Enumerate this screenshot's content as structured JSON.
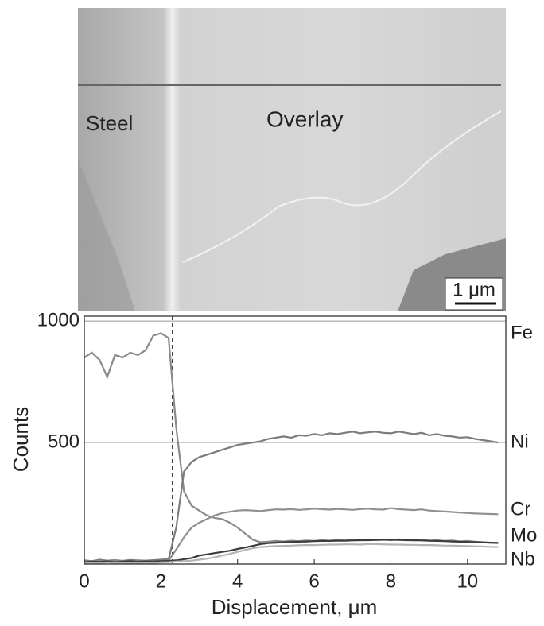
{
  "micrograph": {
    "labels": [
      "Steel",
      "Overlay"
    ],
    "scale_bar": "1 μm"
  },
  "chart_data": {
    "type": "line",
    "xlabel": "Displacement, μm",
    "ylabel": "Counts",
    "x": [
      0,
      0.2,
      0.4,
      0.6,
      0.8,
      1,
      1.2,
      1.4,
      1.6,
      1.8,
      2,
      2.2,
      2.4,
      2.6,
      2.8,
      3,
      3.2,
      3.4,
      3.6,
      3.8,
      4,
      4.2,
      4.4,
      4.6,
      4.8,
      5,
      5.2,
      5.4,
      5.6,
      5.8,
      6,
      6.2,
      6.4,
      6.6,
      6.8,
      7,
      7.2,
      7.4,
      7.6,
      7.8,
      8,
      8.2,
      8.4,
      8.6,
      8.8,
      9,
      9.2,
      9.4,
      9.6,
      9.8,
      10,
      10.2,
      10.4,
      10.6,
      10.8
    ],
    "series": [
      {
        "name": "Fe",
        "color": "#8a8a8a",
        "values": [
          850,
          870,
          840,
          770,
          860,
          850,
          870,
          860,
          880,
          940,
          950,
          930,
          560,
          300,
          240,
          220,
          200,
          190,
          185,
          170,
          150,
          125,
          100,
          90,
          92,
          95,
          93,
          96,
          94,
          97,
          95,
          98,
          96,
          99,
          97,
          100,
          98,
          101,
          99,
          100,
          98,
          102,
          99,
          97,
          100,
          96,
          98,
          95,
          97,
          93,
          95,
          92,
          90,
          88,
          86
        ]
      },
      {
        "name": "Ni",
        "color": "#7c7c7c",
        "values": [
          15,
          12,
          18,
          14,
          16,
          13,
          17,
          15,
          14,
          16,
          18,
          20,
          150,
          380,
          420,
          440,
          450,
          460,
          470,
          480,
          490,
          495,
          500,
          505,
          515,
          520,
          525,
          520,
          530,
          528,
          535,
          530,
          538,
          535,
          540,
          545,
          538,
          542,
          545,
          540,
          538,
          545,
          540,
          535,
          540,
          530,
          535,
          528,
          525,
          520,
          522,
          515,
          510,
          505,
          500
        ]
      },
      {
        "name": "Cr",
        "color": "#909090",
        "values": [
          10,
          8,
          12,
          9,
          11,
          10,
          12,
          9,
          10,
          11,
          12,
          14,
          60,
          110,
          150,
          170,
          185,
          200,
          210,
          215,
          220,
          222,
          220,
          218,
          222,
          225,
          224,
          226,
          223,
          225,
          228,
          226,
          224,
          227,
          225,
          223,
          226,
          228,
          225,
          224,
          230,
          226,
          224,
          222,
          225,
          220,
          218,
          216,
          214,
          212,
          210,
          208,
          207,
          206,
          205
        ]
      },
      {
        "name": "Mo",
        "color": "#3c3c3c",
        "values": [
          8,
          10,
          9,
          11,
          8,
          10,
          12,
          9,
          11,
          10,
          12,
          13,
          15,
          20,
          25,
          35,
          40,
          45,
          50,
          55,
          62,
          68,
          75,
          82,
          86,
          88,
          90,
          91,
          92,
          93,
          94,
          95,
          95,
          96,
          96,
          97,
          98,
          98,
          99,
          100,
          100,
          99,
          98,
          98,
          97,
          96,
          95,
          94,
          93,
          92,
          91,
          90,
          89,
          88,
          87
        ]
      },
      {
        "name": "Nb",
        "color": "#b4b4b4",
        "values": [
          5,
          6,
          4,
          7,
          5,
          6,
          5,
          4,
          6,
          5,
          7,
          8,
          10,
          12,
          14,
          18,
          22,
          28,
          35,
          42,
          50,
          58,
          65,
          70,
          72,
          74,
          75,
          76,
          77,
          78,
          78,
          79,
          80,
          80,
          81,
          81,
          80,
          82,
          82,
          81,
          80,
          80,
          79,
          79,
          78,
          78,
          77,
          76,
          76,
          75,
          74,
          73,
          72,
          71,
          70
        ]
      }
    ],
    "xlim": [
      0,
      11
    ],
    "ylim": [
      0,
      1020
    ],
    "xticks": [
      0,
      2,
      4,
      6,
      8,
      10
    ],
    "yticks": [
      500,
      1000
    ],
    "vline": 2.3,
    "grid": true
  }
}
